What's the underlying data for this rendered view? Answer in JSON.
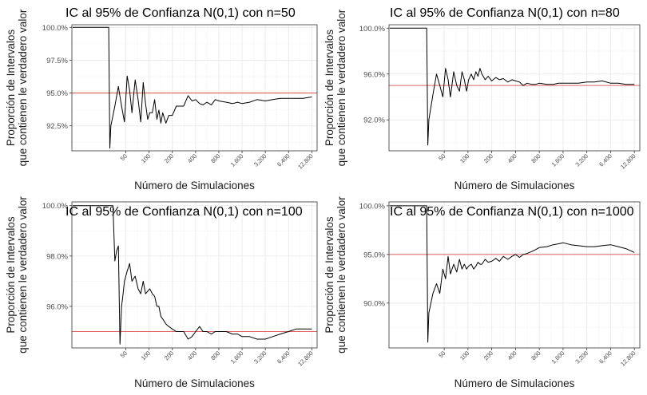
{
  "chart_data": [
    {
      "type": "line",
      "title": "IC al 95% de Confianza N(0,1) con n=50",
      "xlabel": "Número de Simulaciones",
      "ylabel": [
        "Proporción de Intervalos",
        "que contienen le verdadero valor"
      ],
      "x_ticks": [
        50,
        100,
        200,
        400,
        800,
        1600,
        3200,
        6400,
        12800
      ],
      "x_tick_labels": [
        "50",
        "100",
        "200",
        "400",
        "800",
        "1,600",
        "3,200",
        "6,400",
        "12,800"
      ],
      "x_scale": "log",
      "xlim": [
        10,
        15000
      ],
      "y_ticks": [
        0.925,
        0.95,
        0.975,
        1.0
      ],
      "y_tick_labels": [
        "92.5%",
        "95.0%",
        "97.5%",
        "100.0%"
      ],
      "ylim": [
        0.906,
        1.002
      ],
      "reference_line": 0.95,
      "grid": true,
      "series": [
        {
          "color": "#000000",
          "x": [
            10,
            20,
            30,
            31,
            32,
            36,
            40,
            44,
            48,
            52,
            56,
            60,
            66,
            72,
            78,
            84,
            90,
            96,
            102,
            110,
            118,
            126,
            134,
            142,
            150,
            165,
            180,
            200,
            225,
            250,
            280,
            320,
            360,
            400,
            450,
            500,
            560,
            640,
            720,
            800,
            1000,
            1200,
            1400,
            1600,
            2000,
            2500,
            3200,
            4000,
            5000,
            6400,
            8000,
            10000,
            12800
          ],
          "y": [
            1.0,
            1.0,
            1.0,
            0.908,
            0.925,
            0.94,
            0.955,
            0.94,
            0.928,
            0.963,
            0.952,
            0.935,
            0.96,
            0.945,
            0.928,
            0.958,
            0.942,
            0.93,
            0.935,
            0.935,
            0.945,
            0.93,
            0.937,
            0.927,
            0.935,
            0.927,
            0.933,
            0.933,
            0.94,
            0.94,
            0.94,
            0.948,
            0.944,
            0.945,
            0.942,
            0.941,
            0.943,
            0.941,
            0.945,
            0.944,
            0.943,
            0.942,
            0.943,
            0.942,
            0.943,
            0.945,
            0.944,
            0.945,
            0.946,
            0.946,
            0.946,
            0.946,
            0.947
          ]
        }
      ]
    },
    {
      "type": "line",
      "title": "IC al 95% de Confianza N(0,1) con n=80",
      "xlabel": "Número de Simulaciones",
      "ylabel": [
        "Proporción de Intervalos",
        "que contienen le verdadero valor"
      ],
      "x_ticks": [
        50,
        100,
        200,
        400,
        800,
        1600,
        3200,
        6400,
        12800
      ],
      "x_tick_labels": [
        "50",
        "100",
        "200",
        "400",
        "800",
        "1,600",
        "3,200",
        "6,400",
        "12,800"
      ],
      "x_scale": "log",
      "xlim": [
        10,
        15000
      ],
      "y_ticks": [
        0.92,
        0.96,
        1.0
      ],
      "y_tick_labels": [
        "92.0%",
        "96.0%",
        "100.0%"
      ],
      "ylim": [
        0.893,
        1.003
      ],
      "reference_line": 0.95,
      "grid": true,
      "series": [
        {
          "color": "#000000",
          "x": [
            10,
            20,
            30,
            31,
            32,
            36,
            40,
            44,
            48,
            52,
            56,
            60,
            66,
            72,
            78,
            84,
            90,
            96,
            102,
            110,
            118,
            126,
            134,
            142,
            150,
            165,
            180,
            200,
            225,
            250,
            280,
            320,
            360,
            400,
            450,
            500,
            560,
            640,
            720,
            800,
            1000,
            1200,
            1400,
            1600,
            2000,
            2500,
            3200,
            4000,
            5000,
            6400,
            8000,
            10000,
            12800
          ],
          "y": [
            1.0,
            1.0,
            1.0,
            0.898,
            0.92,
            0.942,
            0.96,
            0.95,
            0.94,
            0.965,
            0.955,
            0.94,
            0.962,
            0.95,
            0.945,
            0.962,
            0.955,
            0.945,
            0.955,
            0.96,
            0.955,
            0.962,
            0.958,
            0.965,
            0.96,
            0.955,
            0.958,
            0.954,
            0.957,
            0.955,
            0.956,
            0.953,
            0.955,
            0.954,
            0.953,
            0.95,
            0.952,
            0.951,
            0.951,
            0.952,
            0.951,
            0.951,
            0.952,
            0.952,
            0.952,
            0.952,
            0.953,
            0.953,
            0.954,
            0.952,
            0.952,
            0.951,
            0.951
          ]
        }
      ]
    },
    {
      "type": "line",
      "title": "IC al 95% de Confianza N(0,1) con n=100",
      "xlabel": "Número de Simulaciones",
      "ylabel": [
        "Proporción de Intervalos",
        "que contienen le verdadero valor"
      ],
      "x_ticks": [
        50,
        100,
        200,
        400,
        800,
        1600,
        3200,
        6400,
        12800
      ],
      "x_tick_labels": [
        "50",
        "100",
        "200",
        "400",
        "800",
        "1,600",
        "3,200",
        "6,400",
        "12,800"
      ],
      "x_scale": "log",
      "xlim": [
        10,
        15000
      ],
      "y_ticks": [
        0.96,
        0.98,
        1.0
      ],
      "y_tick_labels": [
        "96.0%",
        "98.0%",
        "100.0%"
      ],
      "ylim": [
        0.9435,
        1.0015
      ],
      "reference_line": 0.95,
      "grid": true,
      "series": [
        {
          "color": "#000000",
          "x": [
            10,
            20,
            30,
            34,
            36,
            38,
            40,
            42,
            44,
            46,
            48,
            52,
            56,
            60,
            66,
            72,
            78,
            84,
            90,
            96,
            102,
            110,
            118,
            126,
            134,
            142,
            150,
            165,
            180,
            200,
            225,
            250,
            280,
            320,
            360,
            400,
            450,
            500,
            560,
            640,
            720,
            800,
            1000,
            1200,
            1400,
            1600,
            2000,
            2500,
            3200,
            4000,
            5000,
            6400,
            8000,
            10000,
            12800
          ],
          "y": [
            1.0,
            1.0,
            1.0,
            1.0,
            0.978,
            0.982,
            0.984,
            0.945,
            0.96,
            0.965,
            0.97,
            0.974,
            0.977,
            0.97,
            0.972,
            0.967,
            0.965,
            0.97,
            0.965,
            0.966,
            0.967,
            0.965,
            0.964,
            0.96,
            0.96,
            0.956,
            0.955,
            0.953,
            0.952,
            0.951,
            0.95,
            0.95,
            0.95,
            0.947,
            0.948,
            0.95,
            0.952,
            0.95,
            0.95,
            0.949,
            0.95,
            0.95,
            0.95,
            0.949,
            0.949,
            0.948,
            0.948,
            0.947,
            0.947,
            0.948,
            0.949,
            0.95,
            0.951,
            0.951,
            0.951
          ]
        }
      ]
    },
    {
      "type": "line",
      "title": "IC al 95% de Confianza N(0,1) con n=1000",
      "xlabel": "Número de Simulaciones",
      "ylabel": [
        "Proporción de Intervalos",
        "que contienen le verdadero valor"
      ],
      "x_ticks": [
        50,
        100,
        200,
        400,
        800,
        1600,
        3200,
        6400,
        12800
      ],
      "x_tick_labels": [
        "50",
        "100",
        "200",
        "400",
        "800",
        "1,600",
        "3,200",
        "6,400",
        "12,800"
      ],
      "x_scale": "log",
      "xlim": [
        10,
        15000
      ],
      "y_ticks": [
        0.9,
        0.95,
        1.0
      ],
      "y_tick_labels": [
        "90.0%",
        "95.0%",
        "100.0%"
      ],
      "ylim": [
        0.854,
        1.004
      ],
      "reference_line": 0.95,
      "grid": true,
      "series": [
        {
          "color": "#000000",
          "x": [
            10,
            20,
            30,
            31,
            32,
            36,
            40,
            44,
            48,
            52,
            56,
            60,
            66,
            72,
            78,
            84,
            90,
            96,
            102,
            110,
            118,
            126,
            134,
            142,
            150,
            165,
            180,
            200,
            225,
            250,
            280,
            320,
            360,
            400,
            450,
            500,
            560,
            640,
            720,
            800,
            1000,
            1200,
            1400,
            1600,
            2000,
            2500,
            3200,
            4000,
            5000,
            6400,
            8000,
            10000,
            12800
          ],
          "y": [
            1.0,
            1.0,
            1.0,
            0.86,
            0.89,
            0.91,
            0.92,
            0.91,
            0.935,
            0.925,
            0.948,
            0.93,
            0.94,
            0.932,
            0.945,
            0.935,
            0.94,
            0.935,
            0.938,
            0.94,
            0.935,
            0.938,
            0.942,
            0.94,
            0.94,
            0.945,
            0.942,
            0.943,
            0.946,
            0.943,
            0.948,
            0.945,
            0.948,
            0.95,
            0.947,
            0.95,
            0.951,
            0.953,
            0.955,
            0.957,
            0.958,
            0.96,
            0.961,
            0.962,
            0.96,
            0.959,
            0.958,
            0.958,
            0.959,
            0.96,
            0.958,
            0.956,
            0.952
          ]
        }
      ]
    }
  ]
}
